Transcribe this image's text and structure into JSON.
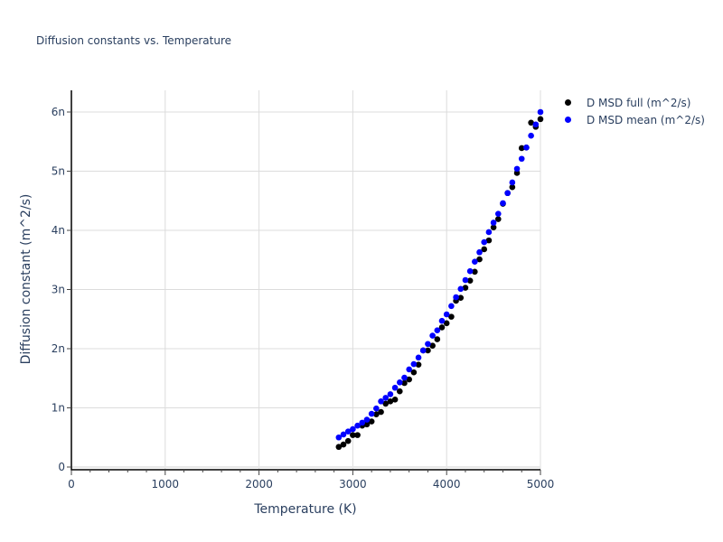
{
  "chart_data": {
    "type": "scatter",
    "title": "Diffusion constants vs. Temperature",
    "xlabel": "Temperature (K)",
    "ylabel": "Diffusion constant (m^2/s)",
    "xlim": [
      0,
      5000
    ],
    "ylim": [
      0,
      6.4e-09
    ],
    "x_ticks": [
      0,
      1000,
      2000,
      3000,
      4000,
      5000
    ],
    "x_tick_labels": [
      "0",
      "1000",
      "2000",
      "3000",
      "4000",
      "5000"
    ],
    "y_ticks": [
      0,
      1e-09,
      2e-09,
      3e-09,
      4e-09,
      5e-09,
      6e-09
    ],
    "y_tick_labels": [
      "0",
      "1n",
      "2n",
      "3n",
      "4n",
      "5n",
      "6n"
    ],
    "grid": true,
    "legend_position": "right-top",
    "x": [
      2850,
      2900,
      2950,
      3000,
      3050,
      3100,
      3150,
      3200,
      3250,
      3300,
      3350,
      3400,
      3450,
      3500,
      3550,
      3600,
      3650,
      3700,
      3750,
      3800,
      3850,
      3900,
      3950,
      4000,
      4050,
      4100,
      4150,
      4200,
      4250,
      4300,
      4350,
      4400,
      4450,
      4500,
      4550,
      4600,
      4650,
      4700,
      4750,
      4800,
      4850,
      4900,
      4950,
      5000
    ],
    "series": [
      {
        "name": "D MSD full (m^2/s)",
        "color": "#000000",
        "unit_scale": "1e-9",
        "values": [
          0.34,
          0.38,
          0.44,
          0.54,
          0.54,
          0.7,
          0.72,
          0.77,
          0.89,
          0.93,
          1.07,
          1.11,
          1.14,
          1.28,
          1.42,
          1.48,
          1.6,
          1.73,
          1.97,
          1.97,
          2.05,
          2.16,
          2.36,
          2.43,
          2.54,
          2.81,
          2.86,
          3.03,
          3.15,
          3.3,
          3.51,
          3.68,
          3.83,
          4.05,
          4.19,
          4.45,
          4.63,
          4.73,
          4.97,
          5.39,
          5.4,
          5.82,
          5.75,
          5.88
        ]
      },
      {
        "name": "D MSD mean (m^2/s)",
        "color": "#0000ff",
        "unit_scale": "1e-9",
        "values": [
          0.5,
          0.55,
          0.6,
          0.64,
          0.7,
          0.75,
          0.8,
          0.9,
          0.99,
          1.11,
          1.17,
          1.23,
          1.34,
          1.43,
          1.51,
          1.65,
          1.74,
          1.85,
          1.97,
          2.08,
          2.22,
          2.31,
          2.47,
          2.58,
          2.72,
          2.87,
          3.01,
          3.16,
          3.31,
          3.47,
          3.63,
          3.8,
          3.97,
          4.13,
          4.28,
          4.46,
          4.63,
          4.81,
          5.04,
          5.21,
          5.4,
          5.6,
          5.79,
          6.0
        ]
      }
    ]
  },
  "legend": {
    "items": [
      {
        "label": "D MSD full (m^2/s)",
        "color": "#000000"
      },
      {
        "label": "D MSD mean (m^2/s)",
        "color": "#0000ff"
      }
    ]
  }
}
